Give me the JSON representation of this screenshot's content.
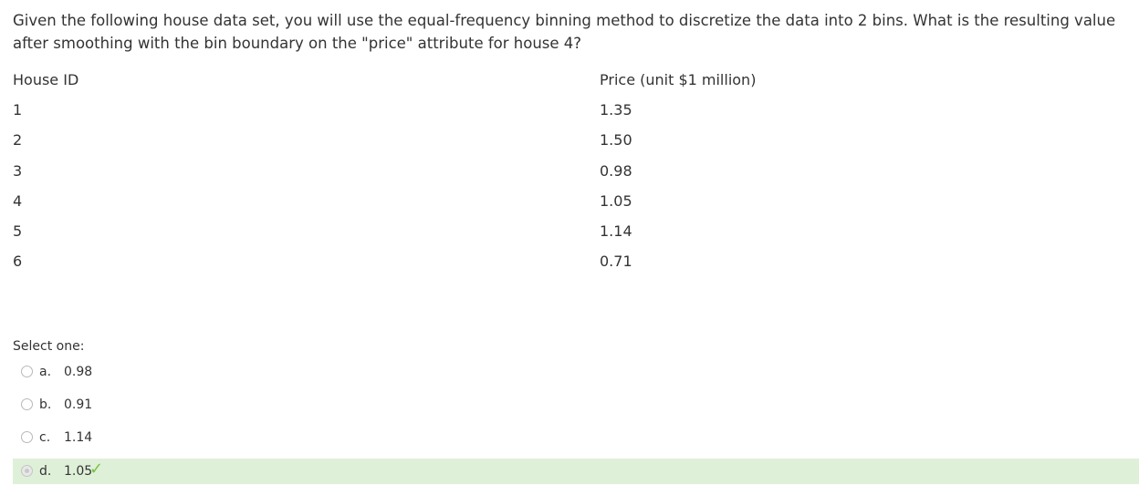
{
  "question": {
    "text": "Given the following house data set, you will use the equal-frequency binning method to discretize the data into 2 bins. What is the resulting value after smoothing with the bin boundary on the \"price\" attribute for house 4?"
  },
  "table": {
    "headers": [
      "House ID",
      "Price (unit $1 million)"
    ],
    "rows": [
      [
        "1",
        "1.35"
      ],
      [
        "2",
        "1.50"
      ],
      [
        "3",
        "0.98"
      ],
      [
        "4",
        "1.05"
      ],
      [
        "5",
        "1.14"
      ],
      [
        "6",
        "0.71"
      ]
    ]
  },
  "answer": {
    "select_label": "Select one:",
    "options": [
      {
        "letter": "a.",
        "value": "0.98"
      },
      {
        "letter": "b.",
        "value": "0.91"
      },
      {
        "letter": "c.",
        "value": "1.14"
      },
      {
        "letter": "d.",
        "value": "1.05"
      }
    ],
    "selected_index": 3,
    "correct_color": "#dff0d8",
    "check_color": "#7ac142"
  }
}
